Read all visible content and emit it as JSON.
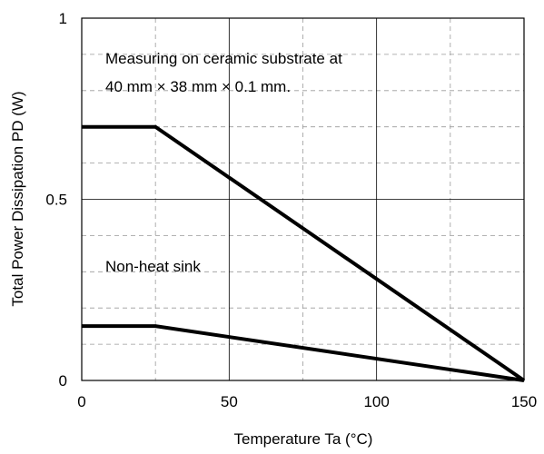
{
  "chart_data": {
    "type": "line",
    "xlabel": "Temperature Ta (°C)",
    "ylabel": "Total Power Dissipation PD (W)",
    "xlim": [
      0,
      150
    ],
    "ylim": [
      0,
      1
    ],
    "x_ticks": [
      0,
      50,
      100,
      150
    ],
    "x_tick_labels": [
      "0",
      "50",
      "100",
      "150"
    ],
    "y_ticks": [
      0,
      0.5,
      1
    ],
    "y_tick_labels": [
      "0",
      "0.5",
      "1"
    ],
    "x_minor_step": 25,
    "y_minor_step": 0.1,
    "grid": true,
    "series": [
      {
        "x": [
          0,
          25,
          150
        ],
        "y": [
          0.7,
          0.7,
          0
        ]
      },
      {
        "x": [
          0,
          25,
          150
        ],
        "y": [
          0.15,
          0.15,
          0
        ]
      }
    ],
    "annotations": [
      "Measuring on ceramic substrate at",
      "40 mm × 38 mm × 0.1 mm.",
      "Non-heat sink"
    ]
  }
}
